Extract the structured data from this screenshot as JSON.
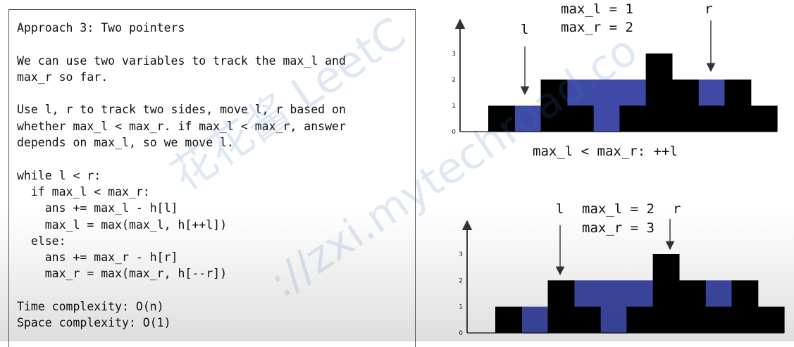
{
  "code": {
    "lines": [
      "Approach 3: Two pointers",
      "",
      "We can use two variables to track the max_l and",
      "max_r so far.",
      "",
      "Use l, r to track two sides, move l, r based on",
      "whether max_l < max_r. if max_l < max_r, answer",
      "depends on max_l, so we move l.",
      "",
      "while l < r:",
      "  if max_l < max_r:",
      "    ans += max_l - h[l]",
      "    max_l = max(max_l, h[++l])",
      "  else:",
      "    ans += max_r - h[r]",
      "    max_r = max(max_r, h[--r])",
      "",
      "Time complexity: O(n)",
      "Space complexity: O(1)"
    ]
  },
  "diagram_top": {
    "max_l": "max_l = 1",
    "max_r": "max_r = 2",
    "left_pointer": "l",
    "right_pointer": "r",
    "condition": "max_l < max_r: ++l",
    "ticks": [
      "0",
      "1",
      "2",
      "3"
    ]
  },
  "diagram_bottom": {
    "left_pointer": "l",
    "max_l": "max_l = 2",
    "right_pointer": "r",
    "max_r": "max_r = 3",
    "ticks": [
      "0",
      "1",
      "2",
      "3"
    ]
  },
  "chart_data": {
    "type": "bar",
    "heights": [
      1,
      0,
      2,
      1,
      0,
      1,
      3,
      2,
      1,
      2,
      1
    ],
    "water_level": [
      1,
      1,
      2,
      2,
      2,
      2,
      3,
      2,
      2,
      2,
      1
    ],
    "ylim": [
      0,
      3
    ],
    "colors": {
      "bar": "#000000",
      "water": "#3e4aa6"
    }
  },
  "watermark": {
    "line1": "花花酱 LeetC",
    "line2": "://zxi.mytechroad.co"
  }
}
